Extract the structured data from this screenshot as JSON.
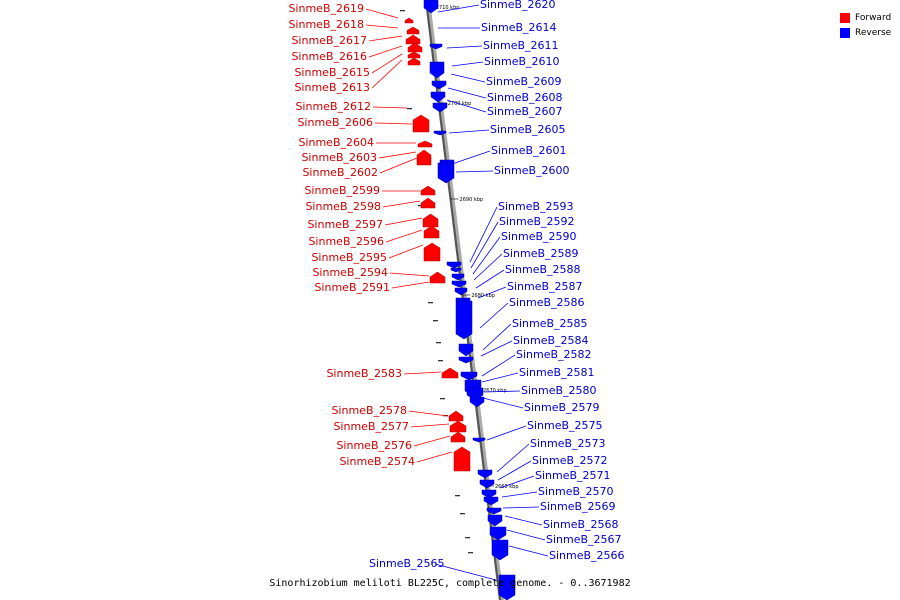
{
  "caption": "Sinorhizobium meliloti BL225C, complete genome. - 0..3671982",
  "legend": {
    "forward": {
      "label": "Forward",
      "color": "#ff0000"
    },
    "reverse": {
      "label": "Reverse",
      "color": "#0000ff"
    }
  },
  "ticks": [
    "2710 kbp",
    "2700 kbp",
    "2690 kbp",
    "2680 kbp",
    "2670 kbp",
    "2660 kbp"
  ],
  "forward_genes": [
    "SinmeB_2619",
    "SinmeB_2618",
    "SinmeB_2617",
    "SinmeB_2616",
    "SinmeB_2615",
    "SinmeB_2613",
    "SinmeB_2612",
    "SinmeB_2606",
    "SinmeB_2604",
    "SinmeB_2603",
    "SinmeB_2602",
    "SinmeB_2599",
    "SinmeB_2598",
    "SinmeB_2597",
    "SinmeB_2596",
    "SinmeB_2595",
    "SinmeB_2594",
    "SinmeB_2591",
    "SinmeB_2583",
    "SinmeB_2578",
    "SinmeB_2577",
    "SinmeB_2576",
    "SinmeB_2574"
  ],
  "reverse_genes": [
    "SinmeB_2620",
    "SinmeB_2614",
    "SinmeB_2611",
    "SinmeB_2610",
    "SinmeB_2609",
    "SinmeB_2608",
    "SinmeB_2607",
    "SinmeB_2605",
    "SinmeB_2601",
    "SinmeB_2600",
    "SinmeB_2593",
    "SinmeB_2592",
    "SinmeB_2590",
    "SinmeB_2589",
    "SinmeB_2588",
    "SinmeB_2587",
    "SinmeB_2586",
    "SinmeB_2585",
    "SinmeB_2584",
    "SinmeB_2582",
    "SinmeB_2581",
    "SinmeB_2580",
    "SinmeB_2579",
    "SinmeB_2575",
    "SinmeB_2573",
    "SinmeB_2572",
    "SinmeB_2571",
    "SinmeB_2570",
    "SinmeB_2569",
    "SinmeB_2568",
    "SinmeB_2567",
    "SinmeB_2566",
    "SinmeB_2565"
  ]
}
